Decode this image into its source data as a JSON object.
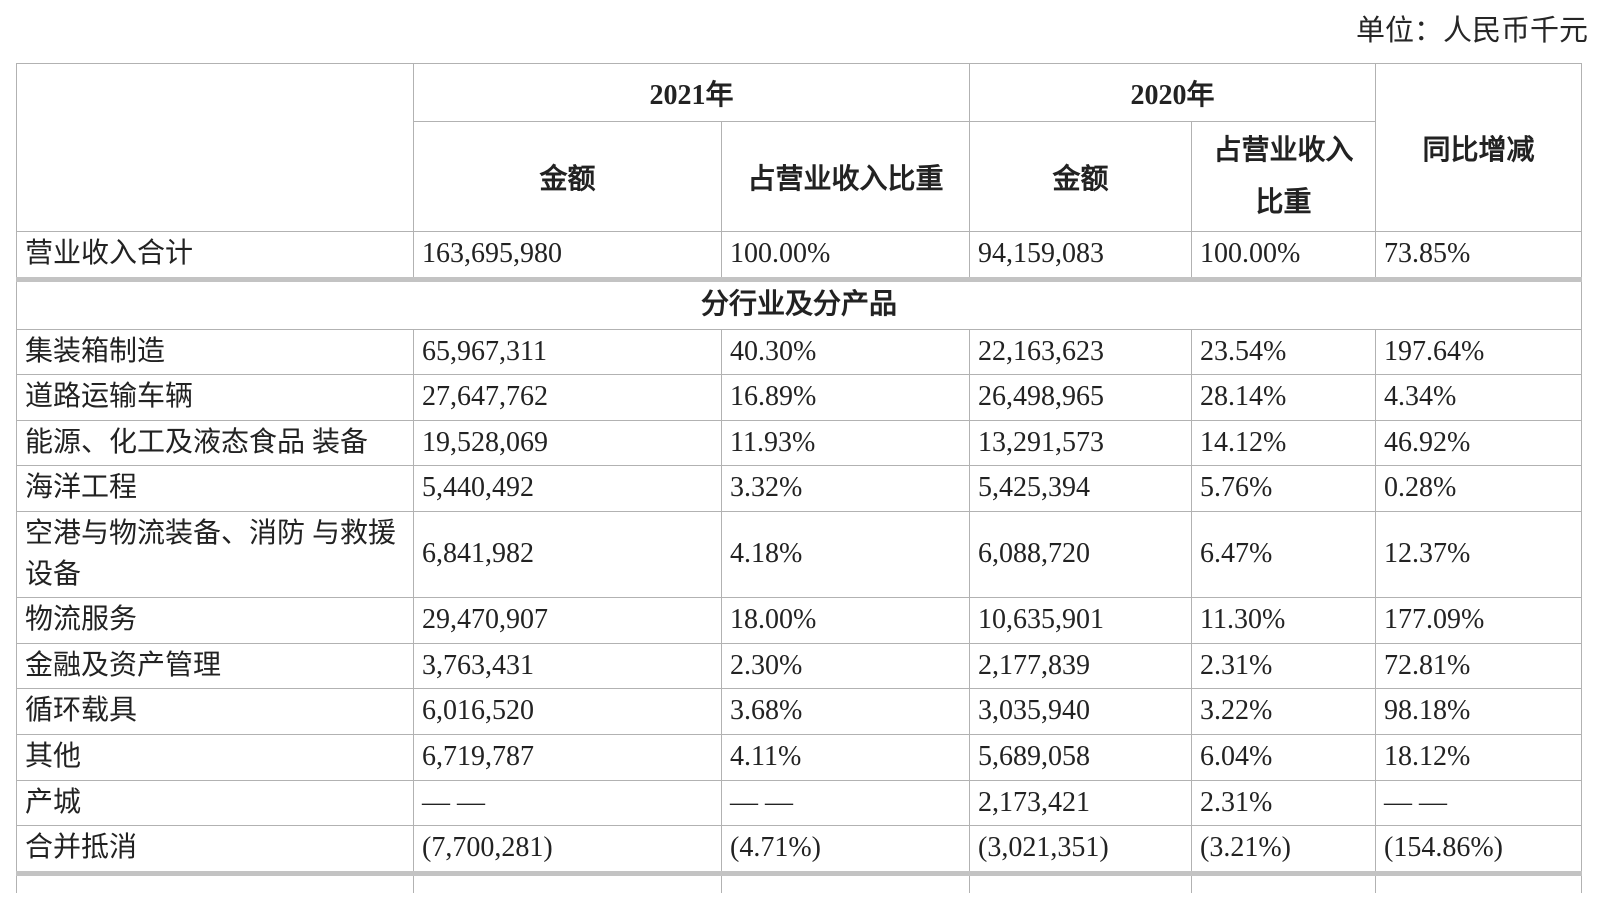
{
  "unit_label": "单位：人民币千元",
  "table": {
    "header": {
      "year_2021": "2021年",
      "year_2020": "2020年",
      "yoy": "同比增减",
      "amount_2021": "金额",
      "ratio_2021": "占营业收入比重",
      "amount_2020": "金额",
      "ratio_2020_line1": "占营业收入",
      "ratio_2020_line2": "比重"
    },
    "total_row": {
      "name": "营业收入合计",
      "amount_2021": "163,695,980",
      "ratio_2021": "100.00%",
      "amount_2020": "94,159,083",
      "ratio_2020": "100.00%",
      "yoy": "73.85%"
    },
    "section_title": "分行业及分产品",
    "rows": [
      {
        "name": "集装箱制造",
        "amount_2021": "65,967,311",
        "ratio_2021": "40.30%",
        "amount_2020": "22,163,623",
        "ratio_2020": "23.54%",
        "yoy": "197.64%"
      },
      {
        "name": "道路运输车辆",
        "amount_2021": "27,647,762",
        "ratio_2021": "16.89%",
        "amount_2020": "26,498,965",
        "ratio_2020": "28.14%",
        "yoy": "4.34%"
      },
      {
        "name": "能源、化工及液态食品 装备",
        "amount_2021": "19,528,069",
        "ratio_2021": "11.93%",
        "amount_2020": "13,291,573",
        "ratio_2020": "14.12%",
        "yoy": "46.92%"
      },
      {
        "name": "海洋工程",
        "amount_2021": "5,440,492",
        "ratio_2021": "3.32%",
        "amount_2020": "5,425,394",
        "ratio_2020": "5.76%",
        "yoy": "0.28%"
      },
      {
        "name": "空港与物流装备、消防 与救援设备",
        "amount_2021": "6,841,982",
        "ratio_2021": "4.18%",
        "amount_2020": "6,088,720",
        "ratio_2020": "6.47%",
        "yoy": "12.37%"
      },
      {
        "name": "物流服务",
        "amount_2021": "29,470,907",
        "ratio_2021": "18.00%",
        "amount_2020": "10,635,901",
        "ratio_2020": "11.30%",
        "yoy": "177.09%"
      },
      {
        "name": "金融及资产管理",
        "amount_2021": "3,763,431",
        "ratio_2021": "2.30%",
        "amount_2020": "2,177,839",
        "ratio_2020": "2.31%",
        "yoy": "72.81%"
      },
      {
        "name": "循环载具",
        "amount_2021": "6,016,520",
        "ratio_2021": "3.68%",
        "amount_2020": "3,035,940",
        "ratio_2020": "3.22%",
        "yoy": "98.18%"
      },
      {
        "name": "其他",
        "amount_2021": "6,719,787",
        "ratio_2021": "4.11%",
        "amount_2020": "5,689,058",
        "ratio_2020": "6.04%",
        "yoy": "18.12%"
      },
      {
        "name": "产城",
        "amount_2021": "— —",
        "ratio_2021": "— —",
        "amount_2020": "2,173,421",
        "ratio_2020": "2.31%",
        "yoy": "— —"
      },
      {
        "name": "合并抵消",
        "amount_2021": "(7,700,281)",
        "ratio_2021": "(4.71%)",
        "amount_2020": "(3,021,351)",
        "ratio_2020": "(3.21%)",
        "yoy": "(154.86%)"
      }
    ]
  }
}
